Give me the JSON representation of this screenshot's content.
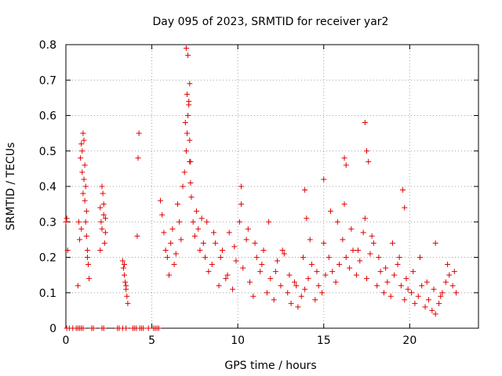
{
  "chart_data": {
    "type": "scatter",
    "title": "Day 095 of 2023, SRMTID for receiver yar2",
    "xlabel": "GPS time / hours",
    "ylabel": "SRMTID / TECUs",
    "xlim": [
      0,
      24
    ],
    "ylim": [
      0,
      0.8
    ],
    "xticks": [
      0,
      5,
      10,
      15,
      20
    ],
    "yticks": [
      0,
      0.1,
      0.2,
      0.3,
      0.4,
      0.5,
      0.6,
      0.7,
      0.8
    ],
    "grid": true,
    "marker": "+",
    "color": "#e00000",
    "series": [
      {
        "name": "yar2",
        "x": [
          0.0,
          0.05,
          0.1,
          0.7,
          0.75,
          0.8,
          0.85,
          0.9,
          0.95,
          1.0,
          1.05,
          1.1,
          1.15,
          1.2,
          1.25,
          1.3,
          1.35,
          1.0,
          1.1,
          1.2,
          0.9,
          1.05,
          1.15,
          1.25,
          0.95,
          2.0,
          2.05,
          2.1,
          2.15,
          2.2,
          2.25,
          2.3,
          2.0,
          2.1,
          2.2,
          2.3,
          3.3,
          3.35,
          3.4,
          3.45,
          3.5,
          3.55,
          3.6,
          3.4,
          3.5,
          4.15,
          4.2,
          4.25,
          5.5,
          5.6,
          5.7,
          5.8,
          5.9,
          6.0,
          6.1,
          6.2,
          6.3,
          6.4,
          6.5,
          6.6,
          6.7,
          6.8,
          6.9,
          7.0,
          7.05,
          7.1,
          7.15,
          7.2,
          7.25,
          7.3,
          7.4,
          7.5,
          7.6,
          7.7,
          7.8,
          7.9,
          8.0,
          7.0,
          7.1,
          7.2,
          6.95,
          7.05,
          7.15,
          7.2,
          7.25,
          8.1,
          8.3,
          8.5,
          8.7,
          8.9,
          9.1,
          9.3,
          9.5,
          9.7,
          9.9,
          10.1,
          10.3,
          10.5,
          10.7,
          10.9,
          11.1,
          11.3,
          11.5,
          11.7,
          11.9,
          12.1,
          12.3,
          12.5,
          12.7,
          12.9,
          13.1,
          13.3,
          13.5,
          13.7,
          13.9,
          14.1,
          14.3,
          14.5,
          14.7,
          14.9,
          15.1,
          15.3,
          15.5,
          15.7,
          15.9,
          16.1,
          16.3,
          16.5,
          16.7,
          16.9,
          17.1,
          17.3,
          17.5,
          17.7,
          17.9,
          18.1,
          18.3,
          18.5,
          18.7,
          18.9,
          19.1,
          19.3,
          19.5,
          19.7,
          19.9,
          20.1,
          20.3,
          20.5,
          20.7,
          20.9,
          21.1,
          21.3,
          21.5,
          21.7,
          21.9,
          22.1,
          22.3,
          22.5,
          22.7,
          8.2,
          8.6,
          9.0,
          9.4,
          9.8,
          10.2,
          10.6,
          11.0,
          11.4,
          11.8,
          12.2,
          12.6,
          13.0,
          13.4,
          13.8,
          14.2,
          14.6,
          15.0,
          15.4,
          15.8,
          16.2,
          16.6,
          17.0,
          17.4,
          17.8,
          18.2,
          18.6,
          19.0,
          19.4,
          19.8,
          20.2,
          20.6,
          21.0,
          21.4,
          21.8,
          22.2,
          22.6,
          10.2,
          13.9,
          14.0,
          15.0,
          16.2,
          16.3,
          17.4,
          17.5,
          17.6,
          19.6,
          19.7,
          21.5,
          0.05,
          0.2,
          0.4,
          0.6,
          0.7,
          0.8,
          0.9,
          1.0,
          1.5,
          1.6,
          2.1,
          2.2,
          3.0,
          3.1,
          3.3,
          3.5,
          3.9,
          4.0,
          4.1,
          4.3,
          4.4,
          4.5,
          4.8,
          5.1,
          5.2,
          5.3,
          5.4
        ],
        "y": [
          0.3,
          0.31,
          0.22,
          0.12,
          0.3,
          0.25,
          0.48,
          0.52,
          0.5,
          0.55,
          0.42,
          0.36,
          0.3,
          0.26,
          0.2,
          0.18,
          0.14,
          0.38,
          0.46,
          0.33,
          0.28,
          0.53,
          0.4,
          0.22,
          0.44,
          0.34,
          0.3,
          0.28,
          0.38,
          0.32,
          0.24,
          0.27,
          0.22,
          0.4,
          0.35,
          0.31,
          0.19,
          0.17,
          0.15,
          0.13,
          0.11,
          0.09,
          0.07,
          0.18,
          0.12,
          0.26,
          0.48,
          0.55,
          0.36,
          0.32,
          0.27,
          0.22,
          0.2,
          0.15,
          0.24,
          0.28,
          0.18,
          0.21,
          0.35,
          0.3,
          0.25,
          0.4,
          0.44,
          0.5,
          0.55,
          0.6,
          0.64,
          0.47,
          0.41,
          0.37,
          0.3,
          0.26,
          0.33,
          0.28,
          0.22,
          0.31,
          0.24,
          0.79,
          0.77,
          0.69,
          0.58,
          0.66,
          0.63,
          0.53,
          0.47,
          0.2,
          0.16,
          0.18,
          0.24,
          0.12,
          0.22,
          0.14,
          0.27,
          0.11,
          0.19,
          0.3,
          0.17,
          0.25,
          0.13,
          0.09,
          0.2,
          0.16,
          0.22,
          0.1,
          0.14,
          0.08,
          0.19,
          0.12,
          0.21,
          0.1,
          0.07,
          0.13,
          0.06,
          0.09,
          0.11,
          0.14,
          0.18,
          0.08,
          0.12,
          0.1,
          0.15,
          0.2,
          0.16,
          0.13,
          0.18,
          0.25,
          0.2,
          0.17,
          0.22,
          0.15,
          0.19,
          0.27,
          0.14,
          0.21,
          0.24,
          0.12,
          0.16,
          0.1,
          0.13,
          0.09,
          0.15,
          0.18,
          0.12,
          0.08,
          0.11,
          0.1,
          0.07,
          0.09,
          0.12,
          0.06,
          0.08,
          0.05,
          0.04,
          0.07,
          0.1,
          0.13,
          0.15,
          0.12,
          0.1,
          0.3,
          0.27,
          0.2,
          0.15,
          0.23,
          0.35,
          0.28,
          0.24,
          0.18,
          0.3,
          0.16,
          0.22,
          0.15,
          0.12,
          0.2,
          0.25,
          0.16,
          0.24,
          0.33,
          0.3,
          0.35,
          0.28,
          0.22,
          0.31,
          0.26,
          0.2,
          0.17,
          0.24,
          0.2,
          0.14,
          0.16,
          0.2,
          0.13,
          0.11,
          0.09,
          0.18,
          0.16,
          0.4,
          0.39,
          0.31,
          0.42,
          0.48,
          0.46,
          0.58,
          0.5,
          0.47,
          0.39,
          0.34,
          0.24,
          0,
          0,
          0,
          0,
          0,
          0,
          0,
          0,
          0,
          0,
          0,
          0,
          0,
          0,
          0,
          0,
          0,
          0,
          0,
          0,
          0,
          0,
          0,
          0,
          0,
          0,
          0
        ]
      }
    ]
  }
}
